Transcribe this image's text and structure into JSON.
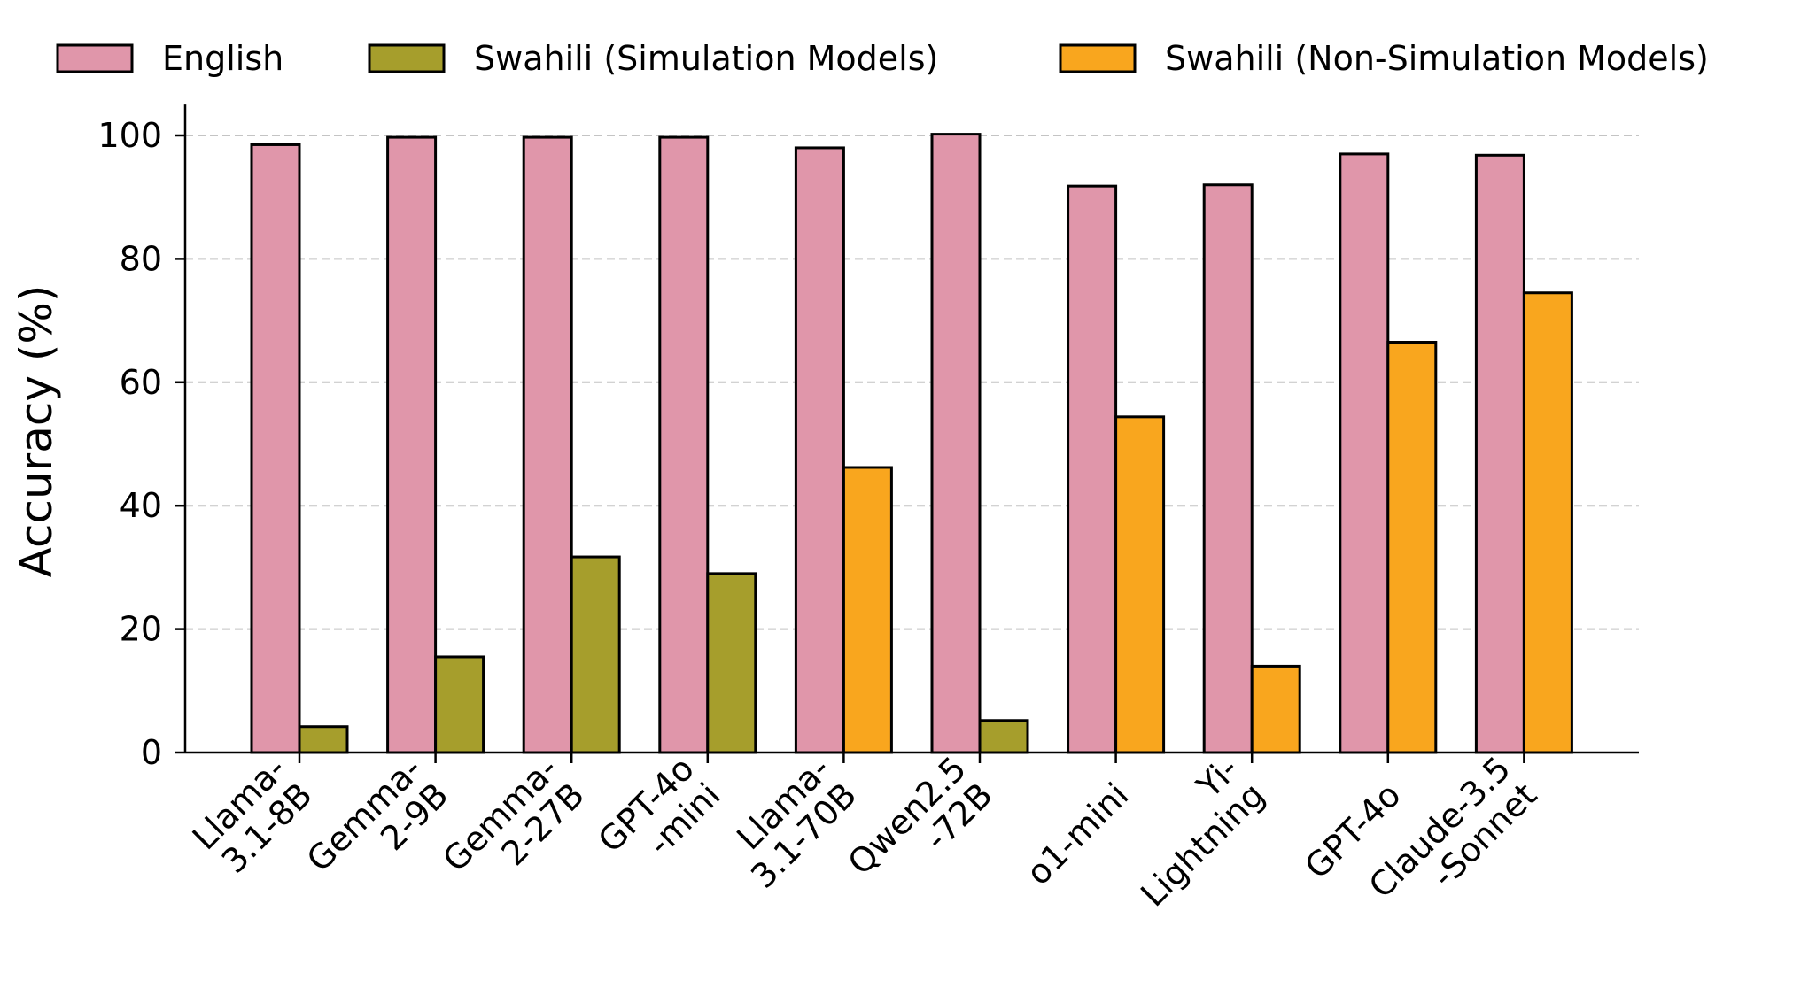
{
  "chart_data": {
    "type": "bar",
    "categories": [
      [
        "Llama-",
        "3.1-8B"
      ],
      [
        "Gemma-",
        "2-9B"
      ],
      [
        "Gemma-",
        "2-27B"
      ],
      [
        "GPT-4o",
        "-mini"
      ],
      [
        "Llama-",
        "3.1-70B"
      ],
      [
        "Qwen2.5",
        "-72B"
      ],
      [
        "o1-mini"
      ],
      [
        "Yi-",
        "Lightning"
      ],
      [
        "GPT-4o"
      ],
      [
        "Claude-3.5",
        "-Sonnet"
      ]
    ],
    "series": [
      {
        "name": "English",
        "color": "#E096AA",
        "values": [
          98.5,
          99.7,
          99.7,
          99.7,
          98.0,
          100.2,
          91.8,
          92.0,
          97.0,
          96.8
        ]
      },
      {
        "name": "Swahili",
        "values": [
          4.2,
          15.5,
          31.7,
          29.0,
          46.2,
          5.2,
          54.4,
          14.0,
          66.5,
          74.5
        ],
        "colors": [
          "#A69E2C",
          "#A69E2C",
          "#A69E2C",
          "#A69E2C",
          "#F9A61E",
          "#A69E2C",
          "#F9A61E",
          "#F9A61E",
          "#F9A61E",
          "#F9A61E"
        ]
      }
    ],
    "legend": [
      {
        "label": "English",
        "color": "#E096AA"
      },
      {
        "label": "Swahili (Simulation Models)",
        "color": "#A69E2C"
      },
      {
        "label": "Swahili (Non-Simulation Models)",
        "color": "#F9A61E"
      }
    ],
    "legend_position": "top",
    "ylabel": "Accuracy (%)",
    "xlabel": "",
    "ylim": [
      0,
      105
    ],
    "yticks": [
      0,
      20,
      40,
      60,
      80,
      100
    ],
    "grid": "y-dashed"
  }
}
